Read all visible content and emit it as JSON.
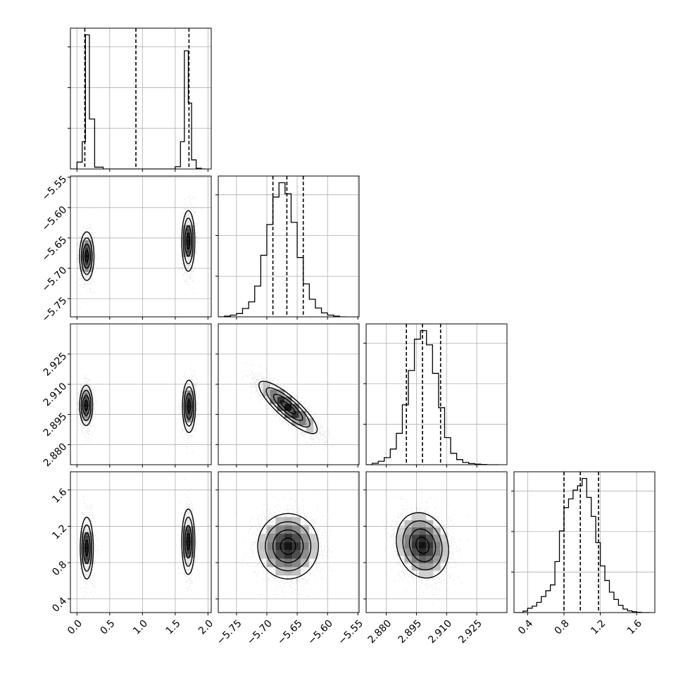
{
  "chart_data": {
    "type": "corner",
    "parameters": 4,
    "grid": true,
    "colors": {
      "line": "#000000",
      "grid": "#b0b0b0",
      "density": "#000000"
    },
    "quantiles": [
      0.16,
      0.5,
      0.84
    ],
    "axes": {
      "p1": {
        "range": [
          -0.1,
          2.05
        ],
        "ticks": [
          0.0,
          0.5,
          1.0,
          1.5,
          2.0
        ],
        "tick_labels": [
          "0.0",
          "0.5",
          "1.0",
          "1.5",
          "2.0"
        ]
      },
      "p2": {
        "range": [
          -5.78,
          -5.548
        ],
        "ticks": [
          -5.75,
          -5.7,
          -5.65,
          -5.6,
          -5.55
        ],
        "tick_labels": [
          "−5.75",
          "−5.70",
          "−5.65",
          "−5.60",
          "−5.55"
        ]
      },
      "p3": {
        "range": [
          2.87,
          2.94
        ],
        "ticks": [
          2.88,
          2.895,
          2.91,
          2.925
        ],
        "tick_labels": [
          "2.880",
          "2.895",
          "2.910",
          "2.925"
        ]
      },
      "p4": {
        "range": [
          0.25,
          1.8
        ],
        "ticks": [
          0.4,
          0.8,
          1.2,
          1.6
        ],
        "tick_labels": [
          "0.4",
          "0.8",
          "1.2",
          "1.6"
        ]
      }
    },
    "marginals": [
      {
        "parameter": "p1",
        "modes": [
          {
            "center": 0.16,
            "sd": 0.07,
            "weight": 0.5
          },
          {
            "center": 1.7,
            "sd": 0.065,
            "weight": 0.5
          }
        ],
        "quantile_lines": [
          0.12,
          0.9,
          1.71
        ],
        "bins": [
          -0.1,
          0.0,
          0.08,
          0.13,
          0.19,
          0.27,
          0.4,
          1.5,
          1.58,
          1.64,
          1.7,
          1.75,
          1.82,
          1.9,
          1.97
        ],
        "counts": [
          0,
          30,
          120,
          590,
          220,
          8,
          0,
          10,
          120,
          520,
          290,
          40,
          3,
          0
        ]
      },
      {
        "parameter": "p2",
        "bins": [
          -5.78,
          -5.77,
          -5.76,
          -5.75,
          -5.74,
          -5.73,
          -5.72,
          -5.71,
          -5.7,
          -5.69,
          -5.68,
          -5.67,
          -5.66,
          -5.65,
          -5.64,
          -5.63,
          -5.62,
          -5.61,
          -5.6,
          -5.59,
          -5.58,
          -5.57
        ],
        "counts": [
          0,
          3,
          8,
          15,
          38,
          68,
          140,
          280,
          420,
          545,
          610,
          560,
          430,
          270,
          150,
          80,
          40,
          18,
          8,
          3,
          0
        ],
        "quantile_lines": [
          -5.69,
          -5.667,
          -5.64
        ]
      },
      {
        "parameter": "p3",
        "bins": [
          2.87,
          2.873,
          2.876,
          2.879,
          2.882,
          2.885,
          2.888,
          2.891,
          2.894,
          2.897,
          2.9,
          2.903,
          2.906,
          2.909,
          2.912,
          2.915,
          2.918,
          2.921,
          2.924,
          2.927,
          2.93,
          2.933,
          2.936
        ],
        "counts": [
          0,
          5,
          12,
          25,
          55,
          110,
          210,
          330,
          440,
          470,
          420,
          320,
          200,
          95,
          40,
          18,
          8,
          4,
          2,
          1,
          0,
          0
        ],
        "quantile_lines": [
          2.89,
          2.898,
          2.907
        ]
      },
      {
        "parameter": "p4",
        "bins": [
          0.25,
          0.3,
          0.35,
          0.4,
          0.45,
          0.5,
          0.55,
          0.6,
          0.65,
          0.7,
          0.75,
          0.8,
          0.85,
          0.9,
          0.95,
          1.0,
          1.05,
          1.1,
          1.15,
          1.2,
          1.25,
          1.3,
          1.35,
          1.4,
          1.45,
          1.5,
          1.55,
          1.6,
          1.65,
          1.7,
          1.75
        ],
        "counts": [
          0,
          0,
          5,
          15,
          22,
          35,
          55,
          75,
          95,
          175,
          280,
          360,
          390,
          420,
          435,
          460,
          395,
          330,
          240,
          160,
          110,
          70,
          45,
          25,
          12,
          6,
          3,
          1,
          0,
          0
        ],
        "quantile_lines": [
          0.8,
          0.98,
          1.18
        ]
      }
    ],
    "joint_distributions": [
      {
        "x": "p1",
        "y": "p2",
        "modes": [
          {
            "mx": 0.15,
            "my": -5.68,
            "sx": 0.055,
            "sy": 0.02,
            "rho": 0.0
          },
          {
            "mx": 1.7,
            "my": -5.655,
            "sx": 0.05,
            "sy": 0.025,
            "rho": 0.0
          }
        ]
      },
      {
        "x": "p1",
        "y": "p3",
        "modes": [
          {
            "mx": 0.14,
            "my": 2.8995,
            "sx": 0.05,
            "sy": 0.005,
            "rho": 0.0
          },
          {
            "mx": 1.71,
            "my": 2.899,
            "sx": 0.05,
            "sy": 0.0065,
            "rho": 0.0
          }
        ]
      },
      {
        "x": "p1",
        "y": "p4",
        "modes": [
          {
            "mx": 0.15,
            "my": 0.96,
            "sx": 0.05,
            "sy": 0.17,
            "rho": 0.0
          },
          {
            "mx": 1.7,
            "my": 1.03,
            "sx": 0.05,
            "sy": 0.18,
            "rho": 0.0
          }
        ]
      },
      {
        "x": "p2",
        "y": "p3",
        "modes": [
          {
            "mx": -5.665,
            "my": 2.8985,
            "sx": 0.024,
            "sy": 0.0065,
            "rho": -0.85
          }
        ]
      },
      {
        "x": "p2",
        "y": "p4",
        "modes": [
          {
            "mx": -5.665,
            "my": 0.98,
            "sx": 0.025,
            "sy": 0.18,
            "rho": 0.0
          }
        ]
      },
      {
        "x": "p3",
        "y": "p4",
        "modes": [
          {
            "mx": 2.898,
            "my": 0.99,
            "sx": 0.0065,
            "sy": 0.18,
            "rho": -0.15
          }
        ]
      }
    ]
  }
}
